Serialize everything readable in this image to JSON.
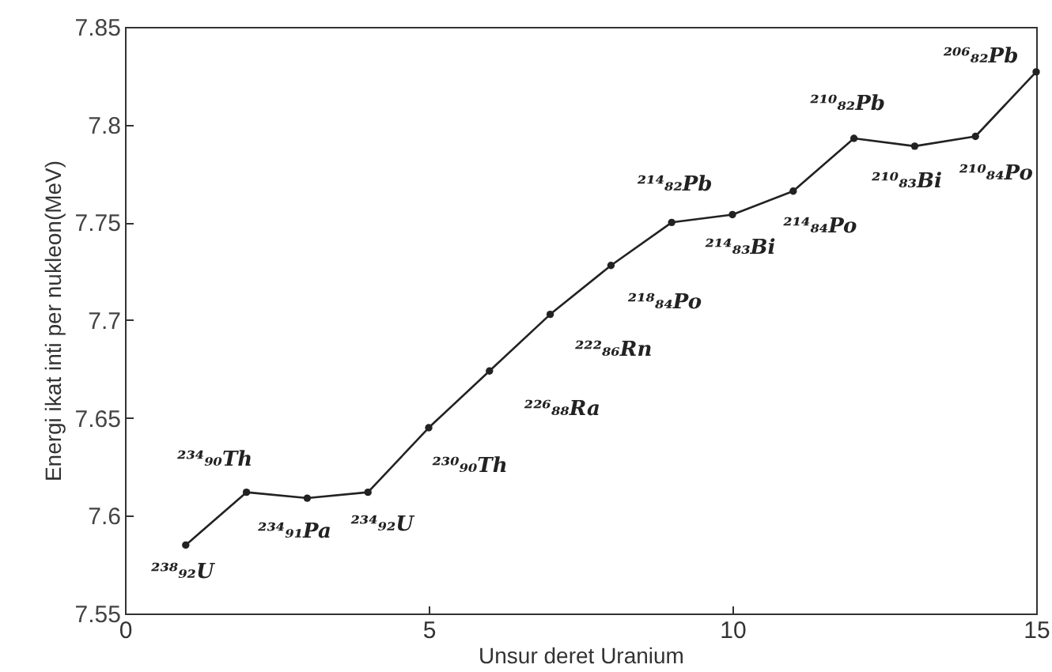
{
  "chart_data": {
    "type": "line",
    "xlabel": "Unsur deret Uranium",
    "ylabel": "Energi ikat inti per nukleon(MeV)",
    "x": [
      1,
      2,
      3,
      4,
      5,
      6,
      7,
      8,
      9,
      10,
      11,
      12,
      13,
      14,
      15
    ],
    "series": [
      {
        "color": "#222222",
        "values": [
          7.585,
          7.612,
          7.609,
          7.612,
          7.645,
          7.674,
          7.703,
          7.728,
          7.75,
          7.754,
          7.766,
          7.793,
          7.789,
          7.794,
          7.827
        ]
      }
    ],
    "xlim": [
      0,
      15
    ],
    "xticks": [
      0,
      5,
      10,
      15
    ],
    "ylim": [
      7.55,
      7.85
    ],
    "yticks": [
      7.55,
      7.6,
      7.65,
      7.7,
      7.75,
      7.8,
      7.85
    ],
    "grid": false,
    "marker": "circle",
    "line_style": "solid",
    "annotations": [
      "²³⁸₉₂U",
      "²³⁴₉₀Th",
      "²³⁴₉₁Pa",
      "²³⁴₉₂U",
      "²³⁰₉₀Th",
      "²²⁶₈₈Ra",
      "²²²₈₆Rn",
      "²¹⁸₈₄Po",
      "²¹⁴₈₂Pb",
      "²¹⁴₈₃Bi",
      "²¹⁴₈₄Po",
      "²¹⁰₈₂Pb",
      "²¹⁰₈₃Bi",
      "²¹⁰₈₄Po",
      "²⁰⁶₈₂Pb"
    ]
  }
}
